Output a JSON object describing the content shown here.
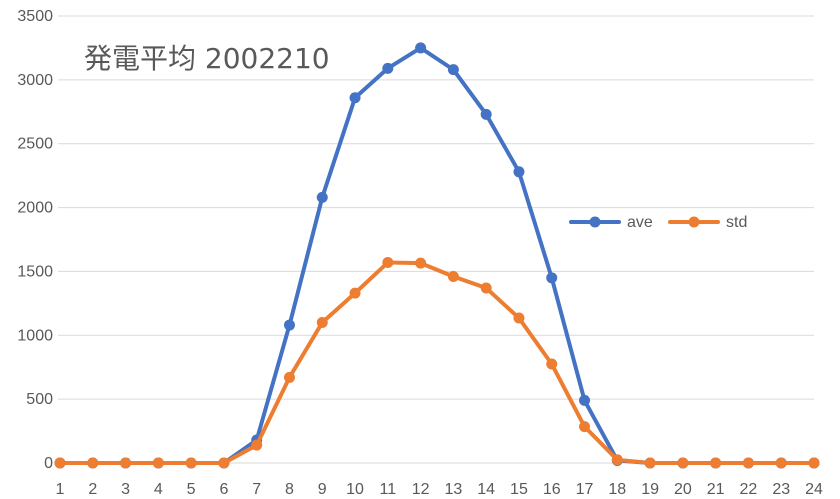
{
  "chart_data": {
    "type": "line",
    "title": "発電平均 2002210",
    "xlabel": "",
    "ylabel": "",
    "x": [
      1,
      2,
      3,
      4,
      5,
      6,
      7,
      8,
      9,
      10,
      11,
      12,
      13,
      14,
      15,
      16,
      17,
      18,
      19,
      20,
      21,
      22,
      23,
      24
    ],
    "ylim": [
      0,
      3500
    ],
    "yticks": [
      0,
      500,
      1000,
      1500,
      2000,
      2500,
      3000,
      3500
    ],
    "grid": true,
    "legend_position": "right",
    "series": [
      {
        "name": "ave",
        "color": "#4472C4",
        "values": [
          0,
          0,
          0,
          0,
          0,
          0,
          180,
          1080,
          2080,
          2860,
          3090,
          3250,
          3080,
          2730,
          2280,
          1450,
          490,
          20,
          0,
          0,
          0,
          0,
          0,
          0
        ]
      },
      {
        "name": "std",
        "color": "#ED7D31",
        "values": [
          0,
          0,
          0,
          0,
          0,
          0,
          140,
          670,
          1100,
          1330,
          1570,
          1565,
          1460,
          1370,
          1135,
          775,
          285,
          25,
          0,
          0,
          0,
          0,
          0,
          0
        ]
      }
    ]
  }
}
